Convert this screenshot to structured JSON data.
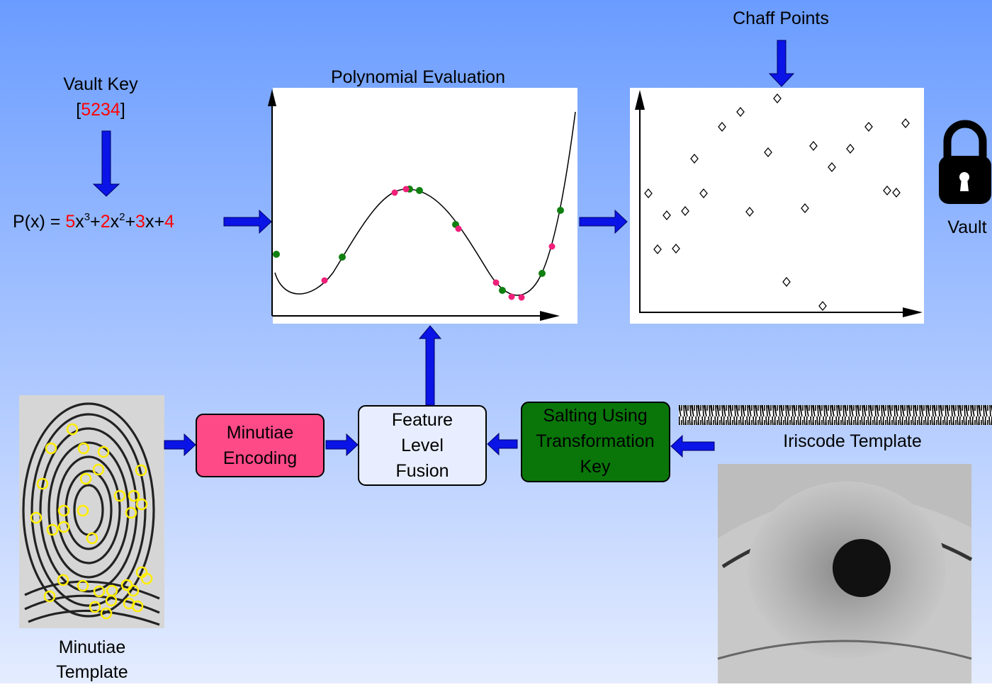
{
  "chaff_label": "Chaff Points",
  "vault_key": {
    "label": "Vault Key",
    "open": "[",
    "key": "5234",
    "close": "]"
  },
  "polynomial": [
    {
      "text": "P(x) = "
    },
    {
      "text": "5",
      "color": "#ff0000"
    },
    {
      "text": "x"
    },
    {
      "text": "3",
      "sup": true
    },
    {
      "text": "+"
    },
    {
      "text": "2",
      "color": "#ff0000"
    },
    {
      "text": "x"
    },
    {
      "text": "2",
      "sup": true
    },
    {
      "text": "+"
    },
    {
      "text": "3",
      "color": "#ff0000"
    },
    {
      "text": "x+"
    },
    {
      "text": "4",
      "color": "#ff0000"
    }
  ],
  "evaluation_label": "Polynomial Evaluation",
  "vault_label": "Vault",
  "boxes": {
    "encoding": [
      "Minutiae",
      "Encoding"
    ],
    "fusion": [
      "Feature",
      "Level",
      "Fusion"
    ],
    "salting": [
      "Salting Using",
      "Transformation",
      "Key"
    ]
  },
  "iriscode_label": "Iriscode Template",
  "minutiae_label": [
    "Minutiae",
    "Template"
  ]
}
